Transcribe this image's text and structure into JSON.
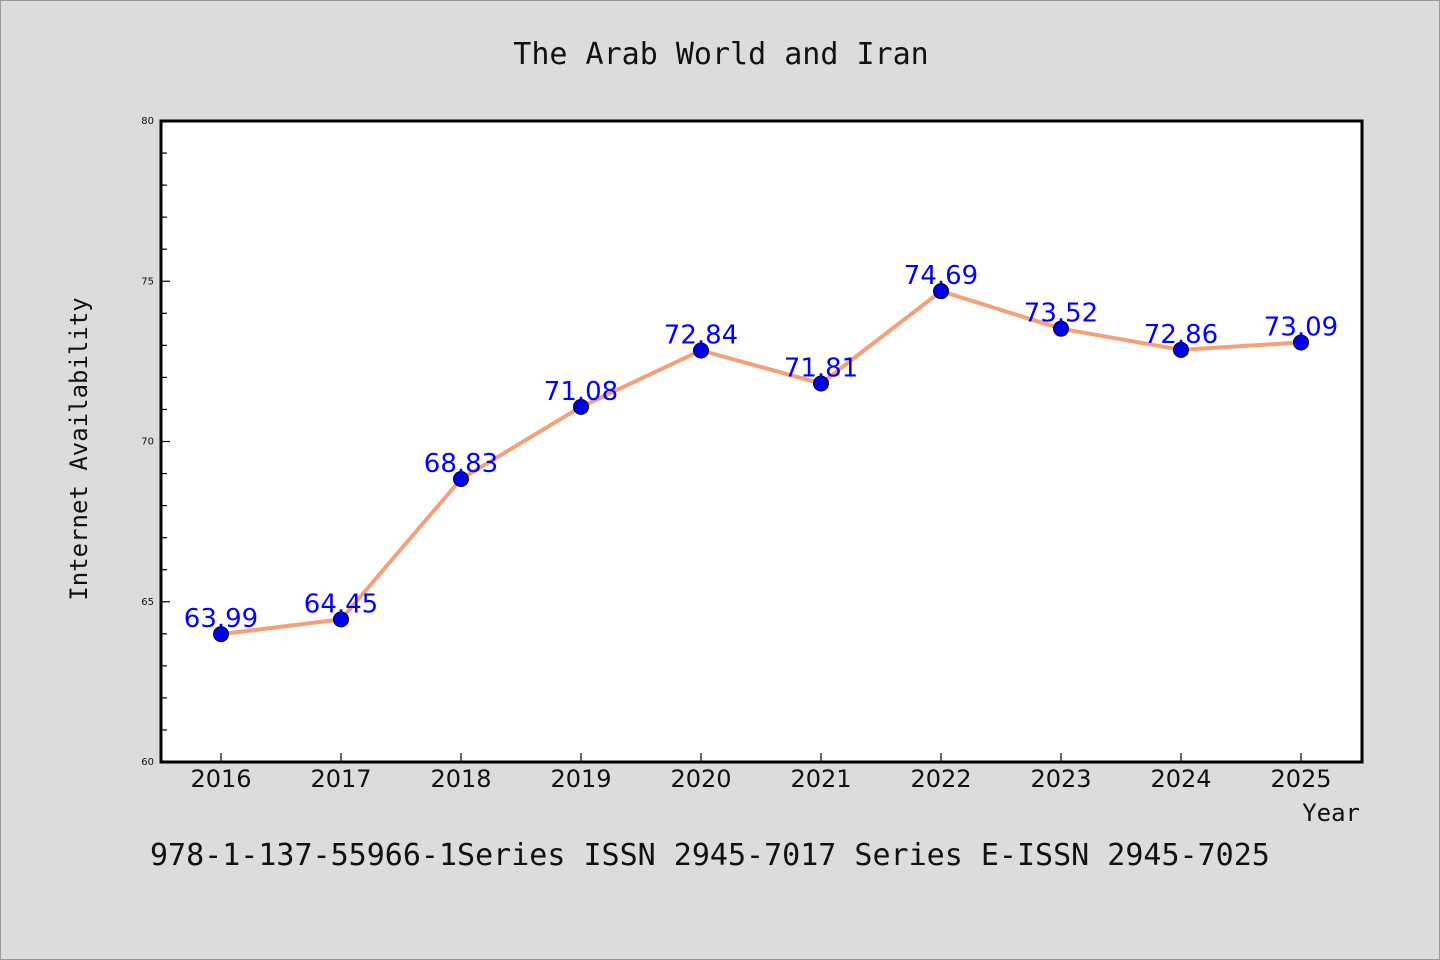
{
  "chart_data": {
    "type": "line",
    "title": "The Arab World and Iran",
    "xlabel": "Year",
    "ylabel": "Internet Availability",
    "categories": [
      "2016",
      "2017",
      "2018",
      "2019",
      "2020",
      "2021",
      "2022",
      "2023",
      "2024",
      "2025"
    ],
    "x_tick_labels": [
      "2016",
      "2017",
      "2018",
      "2019",
      "2020",
      "2021",
      "2022",
      "2023",
      "2024",
      "2025"
    ],
    "series": [
      {
        "values": [
          63.99,
          64.45,
          68.83,
          71.08,
          72.84,
          71.81,
          74.69,
          73.52,
          72.86,
          73.09
        ],
        "data_labels": [
          "63.99",
          "64.45",
          "68.83",
          "71.08",
          "72.84",
          "71.81",
          "74.69",
          "73.52",
          "72.86",
          "73.09"
        ],
        "line_color": "#f4a07a",
        "marker_color": "#0000ee",
        "label_color": "#0000ff"
      }
    ],
    "ylim": [
      60,
      80
    ],
    "y_ticks": [
      60,
      65,
      70,
      75,
      80
    ],
    "y_tick_labels": [
      "60",
      "65",
      "70",
      "75",
      "80"
    ],
    "grid": false,
    "legend": "none"
  },
  "footer_text": "978-1-137-55966-1Series ISSN 2945-7017 Series E-ISSN 2945-7025"
}
